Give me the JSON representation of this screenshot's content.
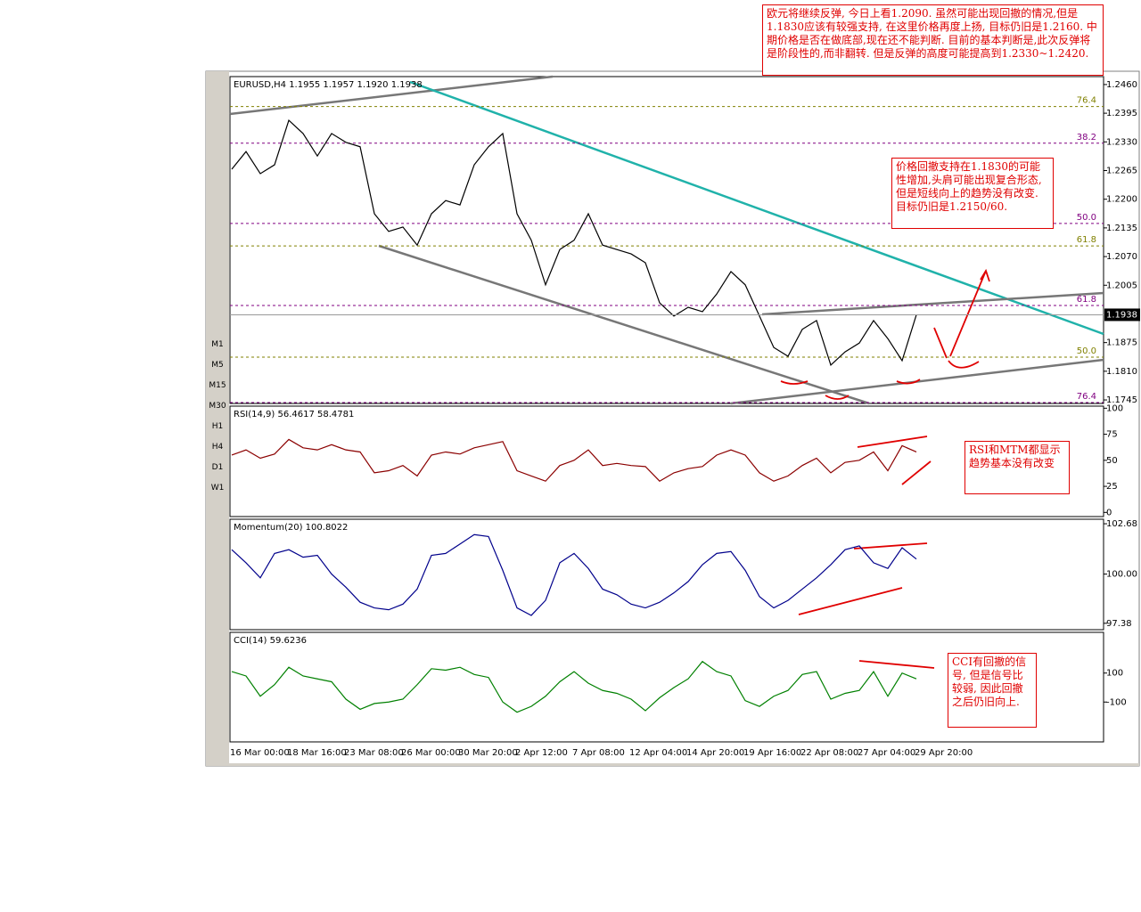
{
  "toolbar": {
    "timeframes": [
      "M1",
      "M5",
      "M15",
      "M30",
      "H1",
      "H4",
      "D1",
      "W1"
    ]
  },
  "notes": {
    "top": "欧元将继续反弹, 今日上看1.2090. 虽然可能出现回撤的情况,但是1.1830应该有较强支持, 在这里价格再度上扬, 目标仍旧是1.2160. 中期价格是否在做底部,现在还不能判断. 目前的基本判断是,此次反弹将是阶段性的,而非翻转. 但是反弹的高度可能提高到1.2330~1.2420.",
    "price": "价格回撤支持在1.1830的可能性增加,头肩可能出现复合形态,但是短线向上的趋势没有改变. 目标仍旧是1.2150/60.",
    "rsi": "RSI和MTM都显示趋势基本没有改变",
    "cci": "CCI有回撤的信号, 但是信号比较弱, 因此回撤之后仍旧向上."
  },
  "chart_data": [
    {
      "type": "line",
      "title": "EURUSD,H4  1.1955 1.1957 1.1920 1.1938",
      "color": "#000000",
      "categories": [
        "16 Mar 00:00",
        null,
        null,
        null,
        "18 Mar 16:00",
        null,
        null,
        null,
        "23 Mar 08:00",
        null,
        null,
        null,
        "26 Mar 00:00",
        null,
        null,
        null,
        "30 Mar 20:00",
        null,
        null,
        null,
        "2 Apr 12:00",
        null,
        null,
        null,
        "7 Apr 08:00",
        null,
        null,
        null,
        "12 Apr 04:00",
        null,
        null,
        null,
        "14 Apr 20:00",
        null,
        null,
        null,
        "19 Apr 16:00",
        null,
        null,
        null,
        "22 Apr 08:00",
        null,
        null,
        null,
        "27 Apr 04:00",
        null,
        null,
        null,
        "29 Apr 20:00"
      ],
      "values": [
        1.2268,
        1.2308,
        1.2258,
        1.2278,
        1.2379,
        1.2349,
        1.2298,
        1.2349,
        1.2329,
        1.2319,
        1.2167,
        1.2127,
        1.2137,
        1.2096,
        1.2167,
        1.2197,
        1.2187,
        1.2278,
        1.2319,
        1.2349,
        1.2167,
        1.2107,
        1.2006,
        1.2086,
        1.2107,
        1.2167,
        1.2096,
        1.2086,
        1.2076,
        1.2056,
        1.1965,
        1.1935,
        1.1955,
        1.1945,
        1.1985,
        1.2036,
        1.2006,
        1.1935,
        1.1864,
        1.1844,
        1.1905,
        1.1925,
        1.1824,
        1.1854,
        1.1874,
        1.1925,
        1.1884,
        1.1834,
        1.1938
      ],
      "ylim": [
        1.1737,
        1.2478
      ],
      "yticks": [
        {
          "value": 1.246,
          "label": "1.2460"
        },
        {
          "value": 1.2395,
          "label": "1.2395"
        },
        {
          "value": 1.233,
          "label": "1.2330"
        },
        {
          "value": 1.2265,
          "label": "1.2265"
        },
        {
          "value": 1.22,
          "label": "1.2200"
        },
        {
          "value": 1.2135,
          "label": "1.2135"
        },
        {
          "value": 1.207,
          "label": "1.2070"
        },
        {
          "value": 1.2005,
          "label": "1.2005"
        },
        {
          "value": 1.1875,
          "label": "1.1875"
        },
        {
          "value": 1.181,
          "label": "1.1810"
        },
        {
          "value": 1.1745,
          "label": "1.1745"
        }
      ],
      "fibo": [
        {
          "label": "76.4",
          "value": 1.241,
          "color": "#808000"
        },
        {
          "label": "38.2",
          "value": 1.2327,
          "color": "#800080"
        },
        {
          "label": "50.0",
          "value": 1.2145,
          "color": "#800080"
        },
        {
          "label": "61.8",
          "value": 1.2094,
          "color": "#808000"
        },
        {
          "label": "61.8",
          "value": 1.1959,
          "color": "#800080"
        },
        {
          "label": "50.0",
          "value": 1.1842,
          "color": "#808000"
        },
        {
          "label": "76.4",
          "value": 1.1739,
          "color": "#800080"
        }
      ]
    },
    {
      "type": "line",
      "title": "RSI(14,9)  56.4617 58.4781",
      "color": "#8b0000",
      "values": [
        55,
        60,
        52,
        56,
        70,
        62,
        60,
        65,
        60,
        58,
        38,
        40,
        45,
        35,
        55,
        58,
        56,
        62,
        65,
        68,
        40,
        35,
        30,
        45,
        50,
        60,
        45,
        47,
        45,
        44,
        30,
        38,
        42,
        44,
        55,
        60,
        55,
        38,
        30,
        35,
        45,
        52,
        38,
        48,
        50,
        58,
        40,
        64,
        58
      ],
      "ylim": [
        -4,
        102
      ],
      "yticks": [
        0,
        25,
        50,
        75,
        100
      ]
    },
    {
      "type": "line",
      "title": "Momentum(20)  100.8022",
      "color": "#00008b",
      "values": [
        101.3,
        100.6,
        99.8,
        101.1,
        101.3,
        100.9,
        101.0,
        100.0,
        99.3,
        98.5,
        98.2,
        98.1,
        98.4,
        99.2,
        101.0,
        101.1,
        101.6,
        102.1,
        102.0,
        100.2,
        98.2,
        97.8,
        98.6,
        100.6,
        101.1,
        100.3,
        99.2,
        98.9,
        98.4,
        98.2,
        98.5,
        99.0,
        99.6,
        100.5,
        101.1,
        101.2,
        100.2,
        98.8,
        98.2,
        98.6,
        99.2,
        99.8,
        100.5,
        101.3,
        101.5,
        100.6,
        100.3,
        101.4,
        100.8
      ],
      "ylim": [
        97.04,
        102.92
      ],
      "yticks": [
        97.38,
        {
          "value": 100,
          "label": "100.00"
        },
        102.68
      ]
    },
    {
      "type": "line",
      "title": "CCI(14)  59.6236",
      "color": "#008000",
      "values": [
        110,
        80,
        -60,
        20,
        140,
        80,
        60,
        40,
        -80,
        -150,
        -110,
        -100,
        -80,
        20,
        130,
        120,
        140,
        90,
        70,
        -100,
        -170,
        -130,
        -60,
        40,
        110,
        30,
        -20,
        -40,
        -80,
        -160,
        -70,
        0,
        60,
        180,
        110,
        80,
        -90,
        -130,
        -60,
        -20,
        90,
        110,
        -80,
        -40,
        -20,
        110,
        -60,
        100,
        60
      ],
      "ylim": [
        -375,
        381
      ],
      "yticks": [
        -100,
        100
      ]
    }
  ]
}
